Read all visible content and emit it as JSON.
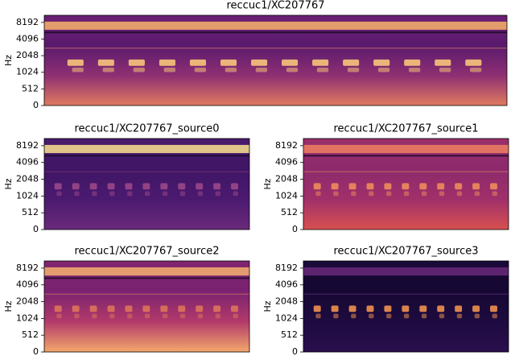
{
  "chart_data": [
    {
      "type": "spectrogram",
      "title": "reccuc1/XC207767",
      "ylabel": "Hz",
      "ylim": [
        0,
        11025
      ],
      "yticks": [
        0,
        512,
        1024,
        2048,
        4096,
        8192
      ],
      "yscale": "symlog",
      "linthresh": 512,
      "colormap": "magma"
    },
    {
      "type": "spectrogram",
      "title": "reccuc1/XC207767_source0",
      "ylabel": "Hz",
      "ylim": [
        0,
        11025
      ],
      "yticks": [
        0,
        512,
        1024,
        2048,
        4096,
        8192
      ],
      "yscale": "symlog",
      "linthresh": 512,
      "colormap": "magma"
    },
    {
      "type": "spectrogram",
      "title": "reccuc1/XC207767_source1",
      "ylabel": "Hz",
      "ylim": [
        0,
        11025
      ],
      "yticks": [
        0,
        512,
        1024,
        2048,
        4096,
        8192
      ],
      "yscale": "symlog",
      "linthresh": 512,
      "colormap": "magma"
    },
    {
      "type": "spectrogram",
      "title": "reccuc1/XC207767_source2",
      "ylabel": "Hz",
      "ylim": [
        0,
        11025
      ],
      "yticks": [
        0,
        512,
        1024,
        2048,
        4096,
        8192
      ],
      "yscale": "symlog",
      "linthresh": 512,
      "colormap": "magma"
    },
    {
      "type": "spectrogram",
      "title": "reccuc1/XC207767_source3",
      "ylabel": "Hz",
      "ylim": [
        0,
        11025
      ],
      "yticks": [
        0,
        512,
        1024,
        2048,
        4096,
        8192
      ],
      "yscale": "symlog",
      "linthresh": 512,
      "colormap": "magma"
    }
  ]
}
